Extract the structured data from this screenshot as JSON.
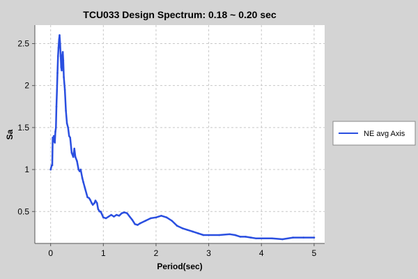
{
  "chart_data": {
    "type": "line",
    "title": "TCU033 Design Spectrum: 0.18 ~ 0.20 sec",
    "xlabel": "Period(sec)",
    "ylabel": "Sa",
    "xlim": [
      -0.3,
      5.2
    ],
    "ylim": [
      0.12,
      2.72
    ],
    "x_ticks": [
      0,
      1,
      2,
      3,
      4,
      5
    ],
    "y_ticks": [
      0.5,
      1,
      1.5,
      2,
      2.5
    ],
    "x_tick_labels": [
      "0",
      "1",
      "2",
      "3",
      "4",
      "5"
    ],
    "y_tick_labels": [
      "0.5",
      "1",
      "1.5",
      "2",
      "2.5"
    ],
    "grid": true,
    "legend_position": "right",
    "series": [
      {
        "name": "NE avg Axis",
        "color": "#2a4fe0",
        "x": [
          0.0,
          0.02,
          0.03,
          0.04,
          0.05,
          0.06,
          0.07,
          0.08,
          0.09,
          0.1,
          0.11,
          0.12,
          0.13,
          0.14,
          0.15,
          0.16,
          0.17,
          0.18,
          0.19,
          0.2,
          0.21,
          0.22,
          0.23,
          0.24,
          0.25,
          0.27,
          0.29,
          0.31,
          0.33,
          0.35,
          0.37,
          0.4,
          0.43,
          0.45,
          0.47,
          0.5,
          0.53,
          0.55,
          0.57,
          0.6,
          0.62,
          0.65,
          0.7,
          0.73,
          0.75,
          0.78,
          0.8,
          0.83,
          0.85,
          0.88,
          0.9,
          0.93,
          0.95,
          1.0,
          1.05,
          1.1,
          1.15,
          1.2,
          1.25,
          1.3,
          1.35,
          1.4,
          1.45,
          1.5,
          1.55,
          1.6,
          1.65,
          1.7,
          1.8,
          1.9,
          2.0,
          2.1,
          2.2,
          2.3,
          2.4,
          2.5,
          2.6,
          2.7,
          2.8,
          2.9,
          3.0,
          3.2,
          3.4,
          3.5,
          3.6,
          3.7,
          3.8,
          3.9,
          4.0,
          4.2,
          4.4,
          4.6,
          4.8,
          5.0
        ],
        "y": [
          1.0,
          1.05,
          1.05,
          1.38,
          1.36,
          1.4,
          1.33,
          1.32,
          1.45,
          1.5,
          1.75,
          1.95,
          2.15,
          2.35,
          2.45,
          2.55,
          2.6,
          2.5,
          2.35,
          2.22,
          2.18,
          2.35,
          2.4,
          2.3,
          2.1,
          1.95,
          1.7,
          1.55,
          1.5,
          1.4,
          1.38,
          1.2,
          1.15,
          1.25,
          1.15,
          1.1,
          1.0,
          0.98,
          1.0,
          0.9,
          0.85,
          0.78,
          0.67,
          0.66,
          0.64,
          0.6,
          0.58,
          0.6,
          0.63,
          0.6,
          0.53,
          0.5,
          0.5,
          0.43,
          0.42,
          0.44,
          0.46,
          0.44,
          0.46,
          0.45,
          0.48,
          0.49,
          0.48,
          0.44,
          0.4,
          0.35,
          0.34,
          0.36,
          0.39,
          0.42,
          0.43,
          0.45,
          0.43,
          0.39,
          0.33,
          0.3,
          0.28,
          0.26,
          0.24,
          0.22,
          0.22,
          0.22,
          0.23,
          0.22,
          0.2,
          0.2,
          0.19,
          0.18,
          0.18,
          0.18,
          0.17,
          0.19,
          0.19,
          0.19
        ]
      }
    ]
  }
}
